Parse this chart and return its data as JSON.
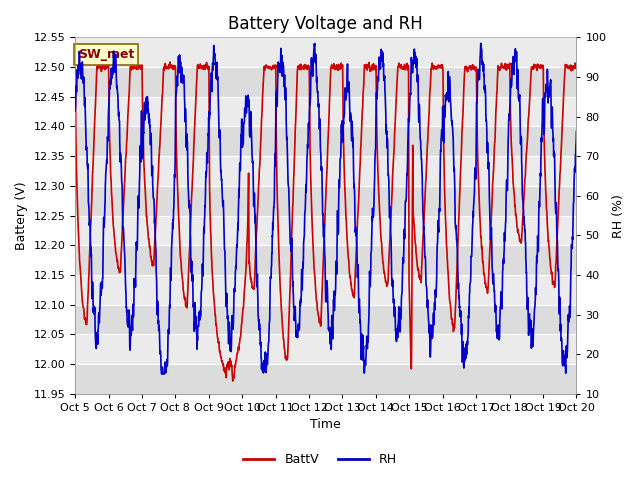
{
  "title": "Battery Voltage and RH",
  "xlabel": "Time",
  "ylabel_left": "Battery (V)",
  "ylabel_right": "RH (%)",
  "ylim_left": [
    11.95,
    12.55
  ],
  "ylim_right": [
    10,
    100
  ],
  "yticks_left": [
    11.95,
    12.0,
    12.05,
    12.1,
    12.15,
    12.2,
    12.25,
    12.3,
    12.35,
    12.4,
    12.45,
    12.5,
    12.55
  ],
  "yticks_right": [
    10,
    20,
    30,
    40,
    50,
    60,
    70,
    80,
    90,
    100
  ],
  "xtick_labels": [
    "Oct 5",
    "Oct 6",
    "Oct 7",
    "Oct 8",
    "Oct 9",
    "Oct 10",
    "Oct 11",
    "Oct 12",
    "Oct 13",
    "Oct 14",
    "Oct 15",
    "Oct 16",
    "Oct 17",
    "Oct 18",
    "Oct 19",
    "Oct 20"
  ],
  "color_battv": "#CC0000",
  "color_rh": "#0000CC",
  "legend_label_battv": "BattV",
  "legend_label_rh": "RH",
  "annotation_text": "SW_met",
  "annotation_bg": "#FFFFCC",
  "annotation_border": "#886600",
  "bg_plot_light": "#EBEBEB",
  "bg_plot_dark": "#DCDCDC",
  "linewidth": 1.2,
  "title_fontsize": 12,
  "tick_fontsize": 8,
  "label_fontsize": 9
}
